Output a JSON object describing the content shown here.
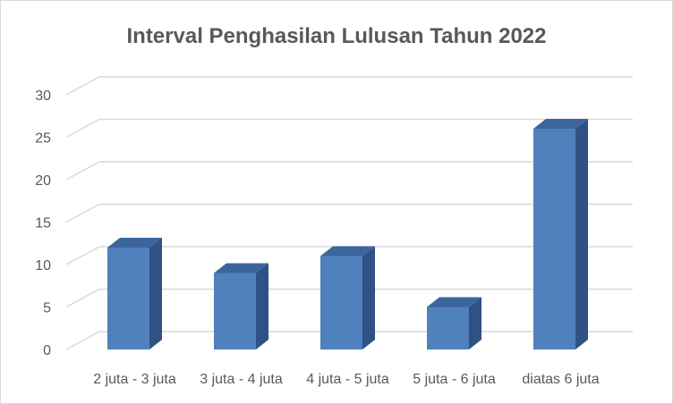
{
  "chart_data": {
    "type": "bar",
    "title": "Interval Penghasilan Lulusan Tahun 2022",
    "categories": [
      "2 juta - 3 juta",
      "3 juta - 4 juta",
      "4 juta - 5 juta",
      "5 juta - 6 juta",
      "diatas 6 juta"
    ],
    "values": [
      12,
      9,
      11,
      5,
      26
    ],
    "ylim": [
      0,
      30
    ],
    "yticks": [
      0,
      5,
      10,
      15,
      20,
      25,
      30
    ],
    "grid": true,
    "style": "3d-column",
    "colors": {
      "front": "#4f81bd",
      "side": "#2f5284",
      "top": "#3c659b",
      "grid": "#d9d9d9",
      "text": "#595959"
    }
  }
}
